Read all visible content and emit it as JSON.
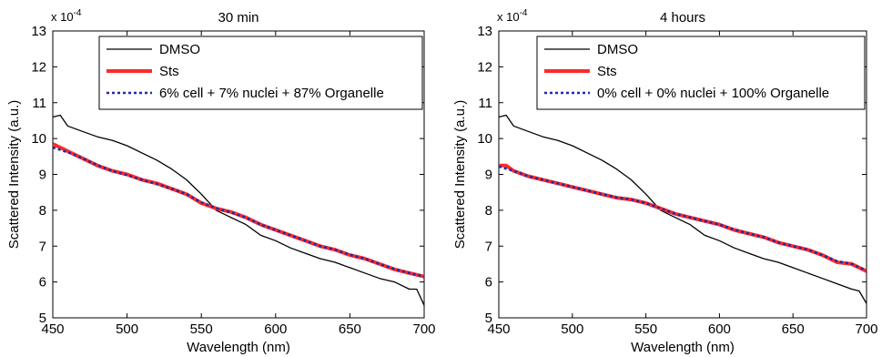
{
  "chart_data": [
    {
      "type": "line",
      "title": "30 min",
      "xlabel": "Wavelength (nm)",
      "ylabel": "Scattered Intensity (a.u.)",
      "y_multiplier": "x 10",
      "y_exponent": "-4",
      "xlim": [
        450,
        700
      ],
      "ylim": [
        5,
        13
      ],
      "xticks": [
        "450",
        "500",
        "550",
        "600",
        "650",
        "700"
      ],
      "yticks": [
        "5",
        "6",
        "7",
        "8",
        "9",
        "10",
        "11",
        "12",
        "13"
      ],
      "grid": false,
      "legend_position": "top-right",
      "series": [
        {
          "name": "DMSO",
          "color": "#000000",
          "style": "solid-thin",
          "x": [
            450,
            455,
            460,
            470,
            480,
            490,
            500,
            510,
            520,
            530,
            540,
            550,
            560,
            570,
            580,
            590,
            600,
            610,
            620,
            630,
            640,
            650,
            660,
            670,
            680,
            690,
            695,
            700
          ],
          "y": [
            10.6,
            10.65,
            10.35,
            10.2,
            10.05,
            9.95,
            9.8,
            9.6,
            9.4,
            9.15,
            8.85,
            8.45,
            8.0,
            7.8,
            7.6,
            7.3,
            7.15,
            6.95,
            6.8,
            6.65,
            6.55,
            6.4,
            6.25,
            6.1,
            6.0,
            5.8,
            5.8,
            5.35
          ]
        },
        {
          "name": "Sts",
          "color": "#ff2a2a",
          "style": "solid-thick",
          "x": [
            450,
            455,
            460,
            470,
            480,
            490,
            500,
            510,
            520,
            530,
            540,
            550,
            560,
            570,
            580,
            590,
            600,
            610,
            620,
            630,
            640,
            650,
            660,
            670,
            680,
            690,
            700
          ],
          "y": [
            9.85,
            9.75,
            9.65,
            9.45,
            9.25,
            9.1,
            9.0,
            8.85,
            8.75,
            8.6,
            8.45,
            8.2,
            8.05,
            7.95,
            7.8,
            7.6,
            7.45,
            7.3,
            7.15,
            7.0,
            6.9,
            6.75,
            6.65,
            6.5,
            6.35,
            6.25,
            6.15
          ]
        },
        {
          "name": "6% cell + 7% nuclei + 87% Organelle",
          "color": "#1f2aa8",
          "style": "dotted",
          "x": [
            450,
            460,
            470,
            480,
            490,
            500,
            510,
            520,
            530,
            540,
            550,
            560,
            570,
            580,
            590,
            600,
            610,
            620,
            630,
            640,
            650,
            660,
            670,
            680,
            690,
            700
          ],
          "y": [
            9.75,
            9.62,
            9.45,
            9.26,
            9.1,
            8.98,
            8.85,
            8.73,
            8.6,
            8.45,
            8.22,
            8.06,
            7.94,
            7.79,
            7.6,
            7.45,
            7.3,
            7.15,
            7.0,
            6.9,
            6.76,
            6.65,
            6.5,
            6.36,
            6.25,
            6.15
          ]
        }
      ]
    },
    {
      "type": "line",
      "title": "4 hours",
      "xlabel": "Wavelength (nm)",
      "ylabel": "Scattered Intensity (a.u.)",
      "y_multiplier": "x 10",
      "y_exponent": "-4",
      "xlim": [
        450,
        700
      ],
      "ylim": [
        5,
        13
      ],
      "xticks": [
        "450",
        "500",
        "550",
        "600",
        "650",
        "700"
      ],
      "yticks": [
        "5",
        "6",
        "7",
        "8",
        "9",
        "10",
        "11",
        "12",
        "13"
      ],
      "grid": false,
      "legend_position": "top-right",
      "series": [
        {
          "name": "DMSO",
          "color": "#000000",
          "style": "solid-thin",
          "x": [
            450,
            455,
            460,
            470,
            480,
            490,
            500,
            510,
            520,
            530,
            540,
            550,
            560,
            570,
            580,
            590,
            600,
            610,
            620,
            630,
            640,
            650,
            660,
            670,
            680,
            690,
            695,
            700
          ],
          "y": [
            10.6,
            10.65,
            10.35,
            10.2,
            10.05,
            9.95,
            9.8,
            9.6,
            9.4,
            9.15,
            8.85,
            8.45,
            8.0,
            7.8,
            7.6,
            7.3,
            7.15,
            6.95,
            6.8,
            6.65,
            6.55,
            6.4,
            6.25,
            6.1,
            5.95,
            5.8,
            5.75,
            5.4
          ]
        },
        {
          "name": "Sts",
          "color": "#ff2a2a",
          "style": "solid-thick",
          "x": [
            450,
            455,
            460,
            470,
            480,
            490,
            500,
            510,
            520,
            530,
            540,
            550,
            560,
            570,
            580,
            590,
            600,
            610,
            620,
            630,
            640,
            650,
            660,
            670,
            680,
            690,
            700
          ],
          "y": [
            9.25,
            9.25,
            9.1,
            8.95,
            8.85,
            8.75,
            8.65,
            8.55,
            8.45,
            8.35,
            8.3,
            8.2,
            8.05,
            7.9,
            7.8,
            7.7,
            7.6,
            7.45,
            7.35,
            7.25,
            7.1,
            7.0,
            6.9,
            6.75,
            6.55,
            6.5,
            6.3
          ]
        },
        {
          "name": "0% cell + 0% nuclei + 100% Organelle",
          "color": "#1f2aa8",
          "style": "dotted",
          "x": [
            450,
            460,
            470,
            480,
            490,
            500,
            510,
            520,
            530,
            540,
            550,
            560,
            570,
            580,
            590,
            600,
            610,
            620,
            630,
            640,
            650,
            660,
            670,
            680,
            690,
            700
          ],
          "y": [
            9.22,
            9.1,
            8.95,
            8.85,
            8.75,
            8.65,
            8.55,
            8.45,
            8.36,
            8.3,
            8.2,
            8.05,
            7.9,
            7.8,
            7.7,
            7.6,
            7.46,
            7.35,
            7.25,
            7.1,
            7.0,
            6.9,
            6.75,
            6.58,
            6.5,
            6.32
          ]
        }
      ]
    }
  ]
}
